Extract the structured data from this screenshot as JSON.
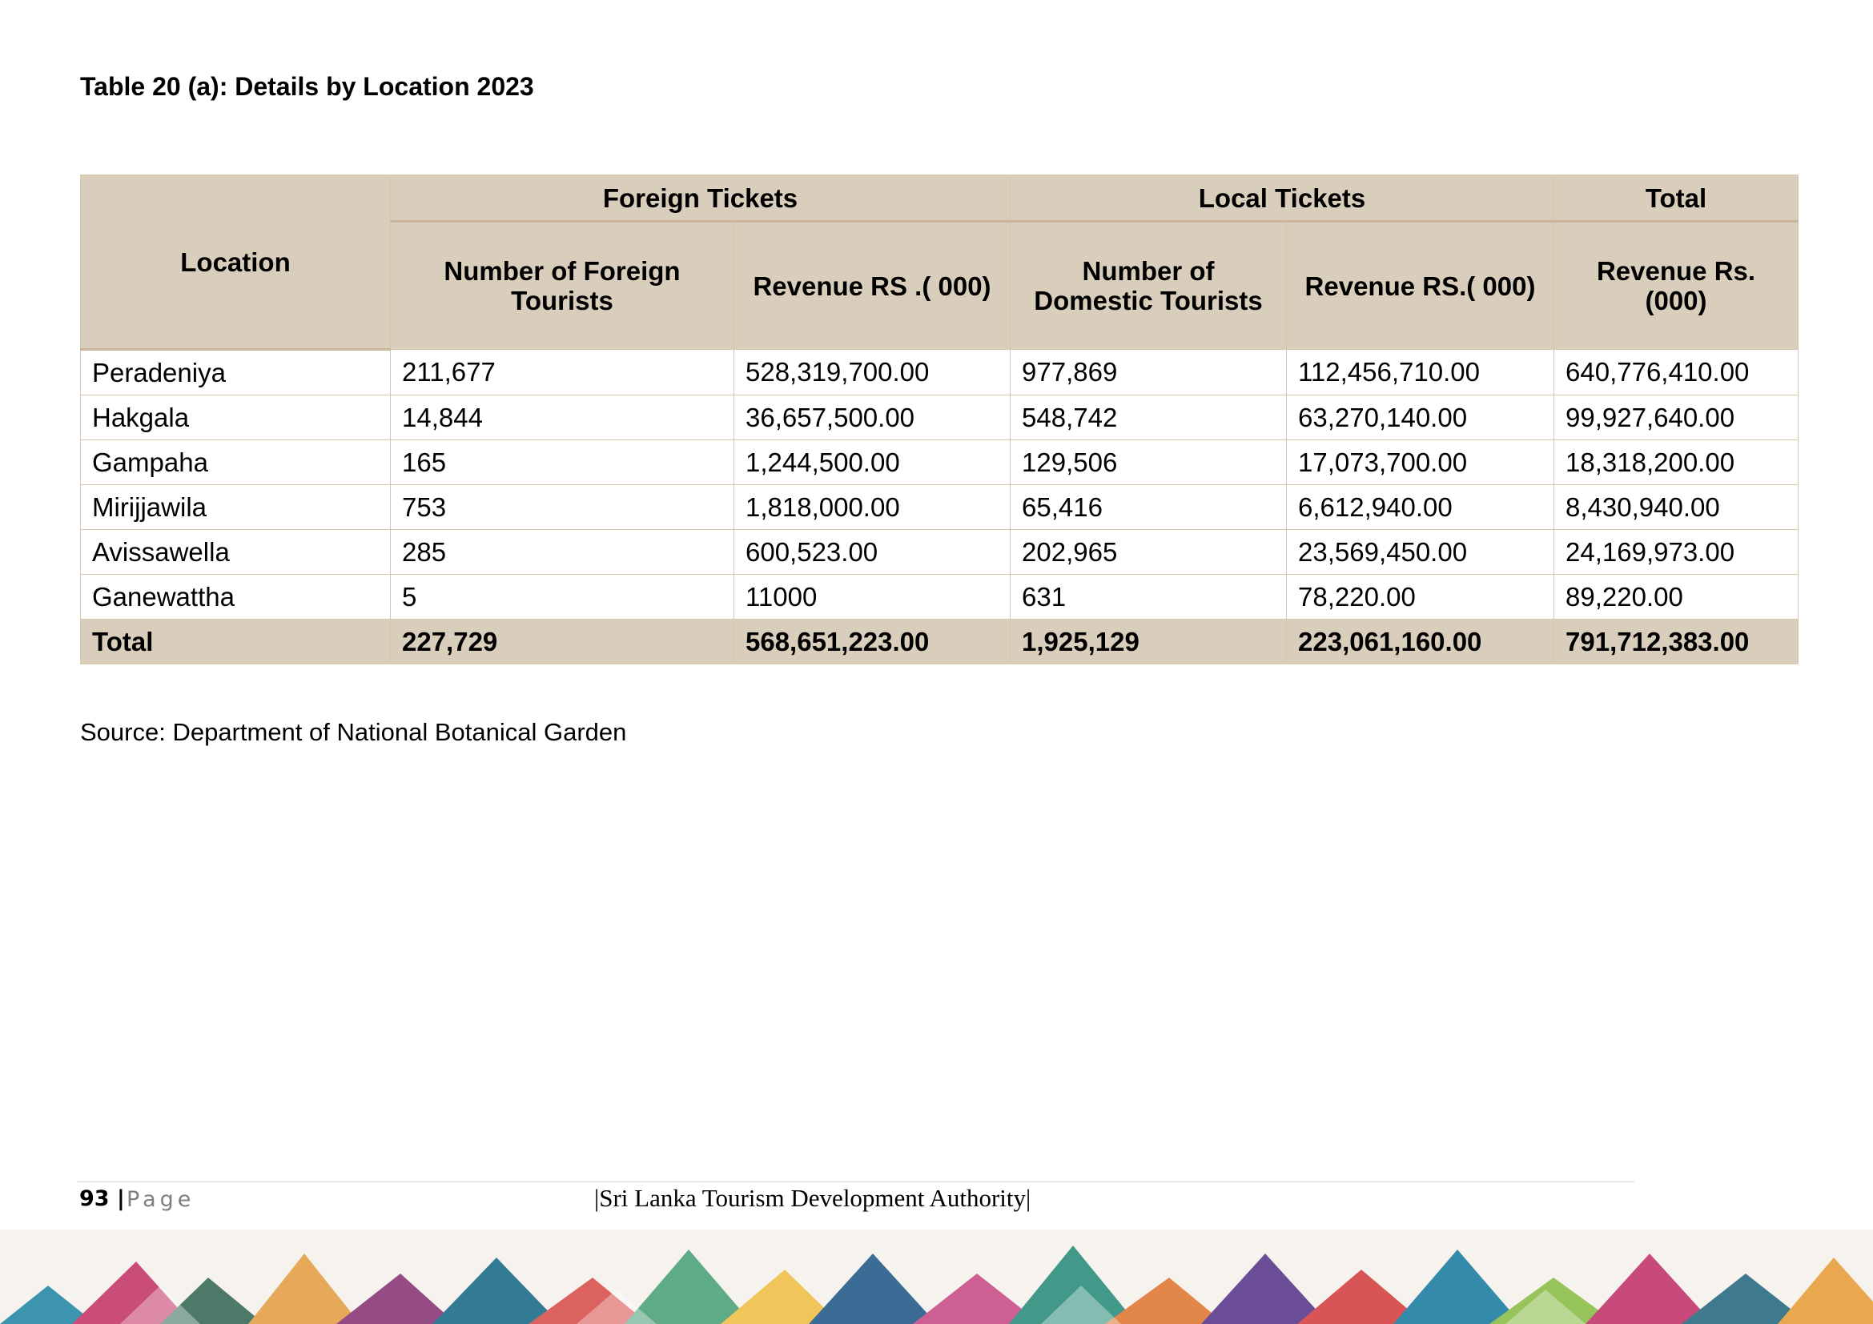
{
  "title": "Table 20 (a): Details by Location 2023",
  "table": {
    "location_header": "Location",
    "group_headers": [
      "Foreign Tickets",
      "Local Tickets",
      "Total"
    ],
    "sub_headers": [
      "Number of Foreign Tourists",
      "Revenue RS .( 000)",
      "Number of Domestic Tourists",
      "Revenue RS.( 000)",
      "Revenue Rs. (000)"
    ],
    "rows": [
      [
        "Peradeniya",
        "211,677",
        "528,319,700.00",
        "977,869",
        "112,456,710.00",
        "640,776,410.00"
      ],
      [
        "Hakgala",
        "14,844",
        "36,657,500.00",
        "548,742",
        "63,270,140.00",
        "99,927,640.00"
      ],
      [
        "Gampaha",
        "165",
        "1,244,500.00",
        "129,506",
        "17,073,700.00",
        "18,318,200.00"
      ],
      [
        "Mirijjawila",
        "753",
        "1,818,000.00",
        "65,416",
        "6,612,940.00",
        "8,430,940.00"
      ],
      [
        "Avissawella",
        "285",
        "600,523.00",
        "202,965",
        "23,569,450.00",
        "24,169,973.00"
      ],
      [
        "Ganewattha",
        "5",
        "11000",
        "631",
        "78,220.00",
        "89,220.00"
      ]
    ],
    "total_row": [
      "Total",
      "227,729",
      "568,651,223.00",
      "1,925,129",
      "223,061,160.00",
      "791,712,383.00"
    ]
  },
  "source": "Source: Department of National Botanical Garden",
  "footer": {
    "page_number": "93",
    "separator": "|",
    "page_word": "Page",
    "authority": "|Sri Lanka Tourism Development Authority|"
  },
  "colors": {
    "header_bg": "#d9cdbb",
    "border": "#d5c6ad"
  }
}
